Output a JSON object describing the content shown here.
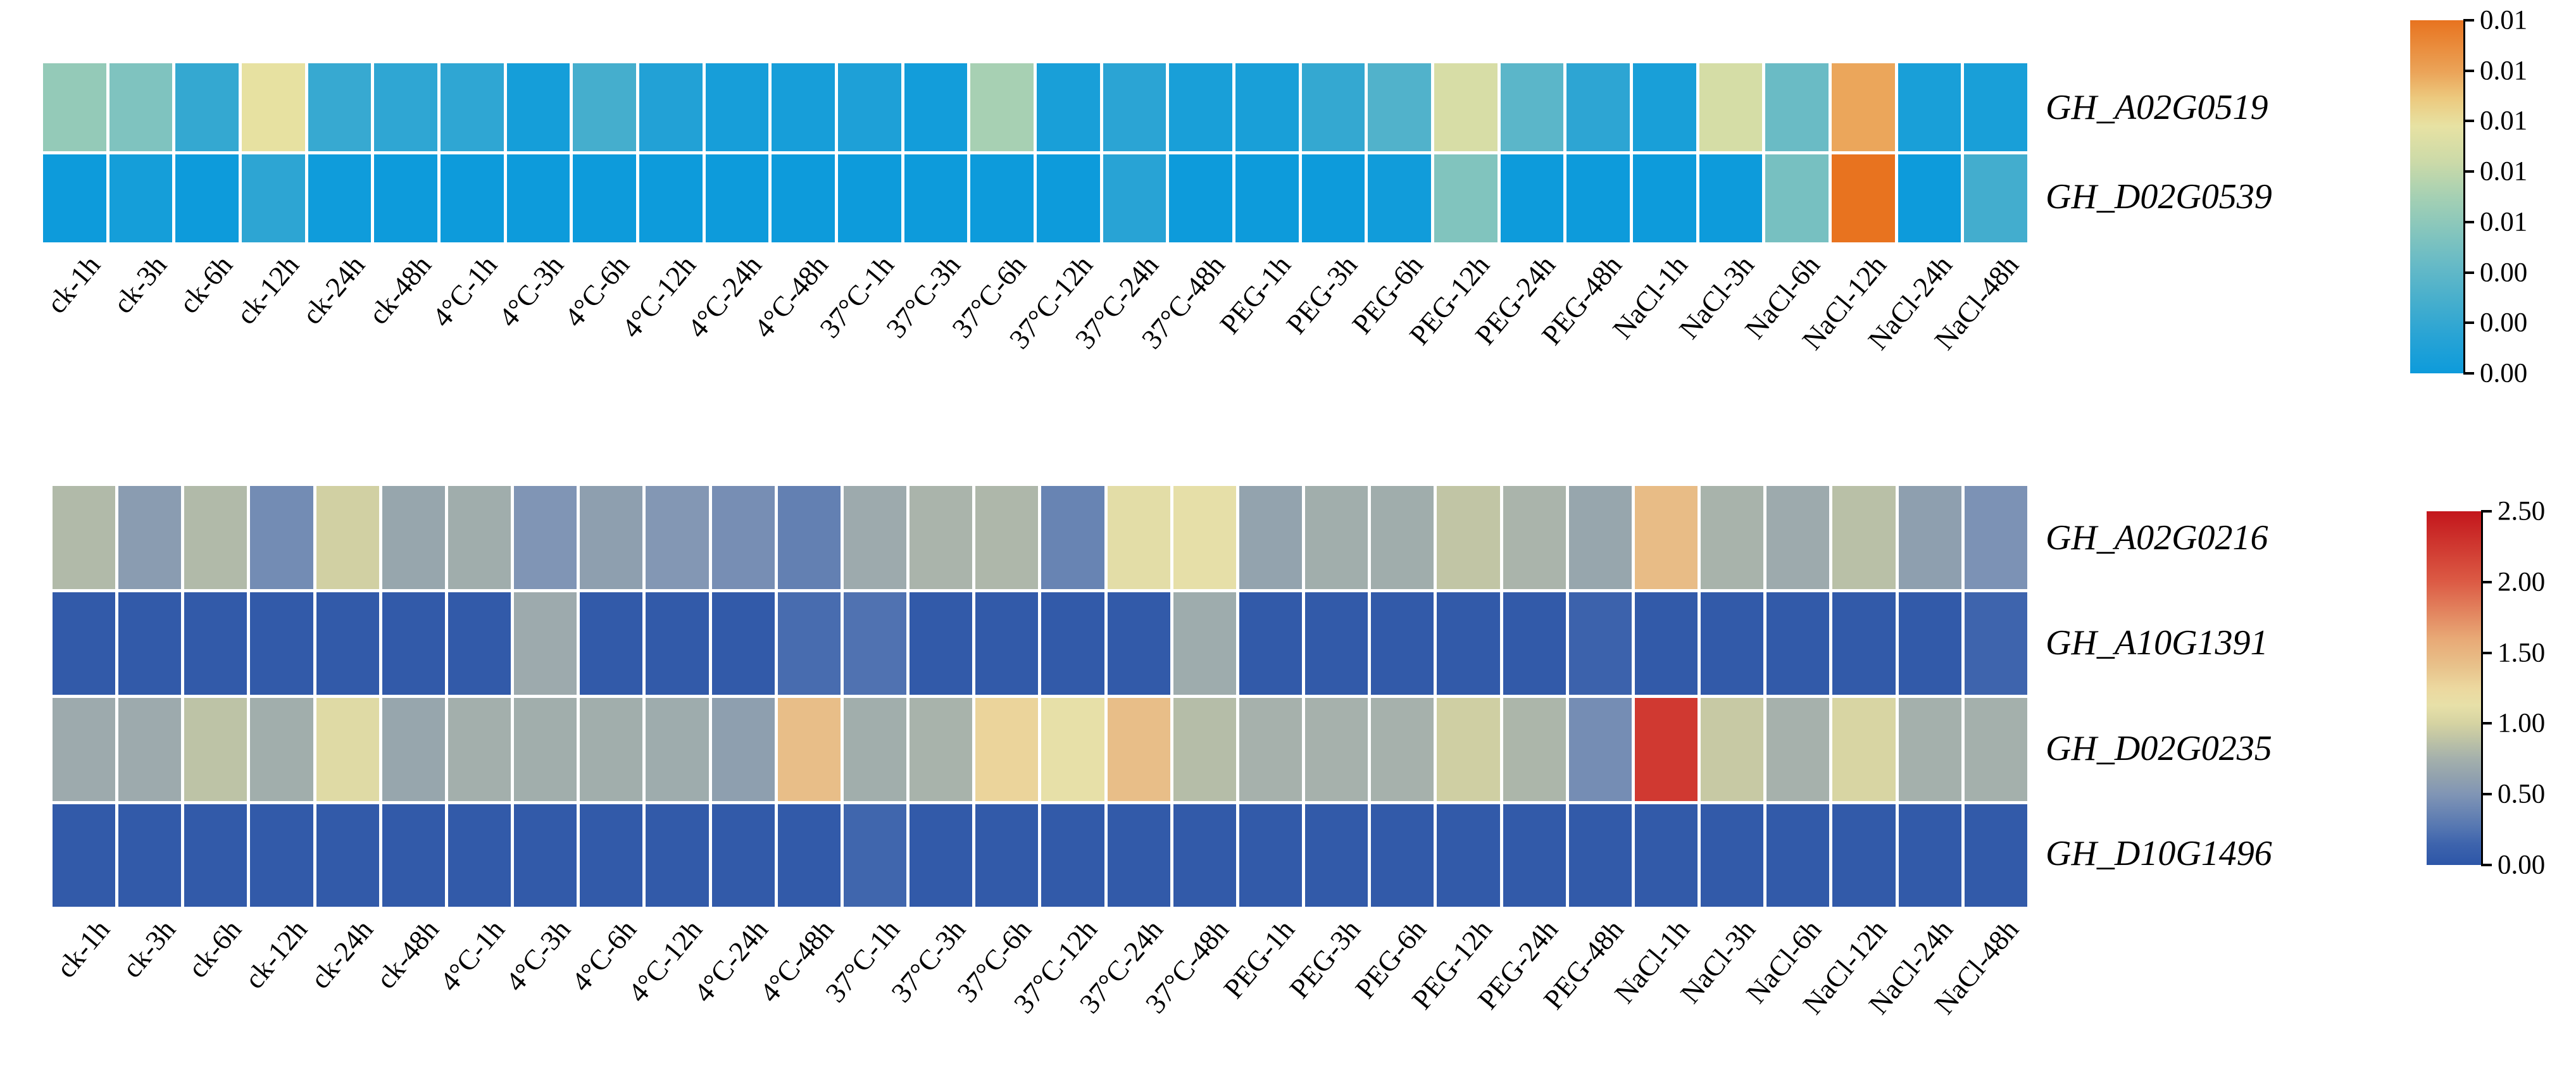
{
  "figure": {
    "background": "#ffffff",
    "text_color": "#000000"
  },
  "chart_data": [
    {
      "type": "heatmap",
      "title": "",
      "xlabel": "",
      "ylabel": "",
      "legend_position": "right",
      "grid": false,
      "rows": [
        "GH_A02G0519",
        "GH_D02G0539"
      ],
      "categories": [
        "ck-1h",
        "ck-3h",
        "ck-6h",
        "ck-12h",
        "ck-24h",
        "ck-48h",
        "4°C-1h",
        "4°C-3h",
        "4°C-6h",
        "4°C-12h",
        "4°C-24h",
        "4°C-48h",
        "37°C-1h",
        "37°C-3h",
        "37°C-6h",
        "37°C-12h",
        "37°C-24h",
        "37°C-48h",
        "PEG-1h",
        "PEG-3h",
        "PEG-6h",
        "PEG-12h",
        "PEG-24h",
        "PEG-48h",
        "NaCl-1h",
        "NaCl-3h",
        "NaCl-6h",
        "NaCl-12h",
        "NaCl-24h",
        "NaCl-48h"
      ],
      "series": [
        {
          "name": "GH_A02G0519",
          "values": [
            0.0056,
            0.0048,
            0.0018,
            0.0088,
            0.0019,
            0.0016,
            0.0016,
            0.0004,
            0.0025,
            0.001,
            0.0005,
            0.0005,
            0.0008,
            0.0003,
            0.0063,
            0.0006,
            0.0014,
            0.0006,
            0.0006,
            0.0018,
            0.003,
            0.008,
            0.0034,
            0.0015,
            0.0006,
            0.0079,
            0.004,
            0.0106,
            0.0006,
            0.0006
          ]
        },
        {
          "name": "GH_D02G0539",
          "values": [
            0.0,
            0.0004,
            0.0,
            0.0015,
            0.0001,
            0.0,
            0.0,
            0.0,
            0.0,
            0.0,
            0.0,
            0.0,
            0.0,
            0.0,
            0.0,
            0.0,
            0.0013,
            0.0,
            0.0,
            0.0,
            0.0002,
            0.0049,
            0.0,
            0.0,
            0.0,
            0.0,
            0.0045,
            0.0125,
            0.0,
            0.0024
          ]
        }
      ],
      "vmin": 0.0,
      "vmax": 0.0125,
      "colorbar": {
        "tick_labels": [
          "0.01",
          "0.01",
          "0.01",
          "0.01",
          "0.01",
          "0.00",
          "0.00",
          "0.00"
        ],
        "colormap": [
          {
            "t": 0.0,
            "c": "#0d9bdb"
          },
          {
            "t": 0.1,
            "c": "#27a3d5"
          },
          {
            "t": 0.2,
            "c": "#45aecd"
          },
          {
            "t": 0.3,
            "c": "#64b9c7"
          },
          {
            "t": 0.4,
            "c": "#84c5bd"
          },
          {
            "t": 0.5,
            "c": "#a5d0b3"
          },
          {
            "t": 0.6,
            "c": "#ccdaa8"
          },
          {
            "t": 0.7,
            "c": "#e7e2a3"
          },
          {
            "t": 0.78,
            "c": "#ecc97e"
          },
          {
            "t": 0.85,
            "c": "#eba55a"
          },
          {
            "t": 1.0,
            "c": "#e8731f"
          }
        ]
      }
    },
    {
      "type": "heatmap",
      "title": "",
      "xlabel": "",
      "ylabel": "",
      "legend_position": "right",
      "grid": false,
      "rows": [
        "GH_A02G0216",
        "GH_A10G1391",
        "GH_D02G0235",
        "GH_D10G1496"
      ],
      "categories": [
        "ck-1h",
        "ck-3h",
        "ck-6h",
        "ck-12h",
        "ck-24h",
        "ck-48h",
        "4°C-1h",
        "4°C-3h",
        "4°C-6h",
        "4°C-12h",
        "4°C-24h",
        "4°C-48h",
        "37°C-1h",
        "37°C-3h",
        "37°C-6h",
        "37°C-12h",
        "37°C-24h",
        "37°C-48h",
        "PEG-1h",
        "PEG-3h",
        "PEG-6h",
        "PEG-12h",
        "PEG-24h",
        "PEG-48h",
        "NaCl-1h",
        "NaCl-3h",
        "NaCl-6h",
        "NaCl-12h",
        "NaCl-24h",
        "NaCl-48h"
      ],
      "series": [
        {
          "name": "GH_A02G0216",
          "values": [
            0.82,
            0.57,
            0.82,
            0.43,
            0.98,
            0.66,
            0.72,
            0.5,
            0.6,
            0.52,
            0.45,
            0.34,
            0.7,
            0.78,
            0.8,
            0.37,
            1.1,
            1.12,
            0.63,
            0.73,
            0.72,
            0.9,
            0.78,
            0.66,
            1.45,
            0.77,
            0.7,
            0.86,
            0.6,
            0.48
          ]
        },
        {
          "name": "GH_A10G1391",
          "values": [
            0.04,
            0.04,
            0.04,
            0.04,
            0.04,
            0.04,
            0.04,
            0.7,
            0.04,
            0.04,
            0.04,
            0.2,
            0.24,
            0.04,
            0.04,
            0.04,
            0.04,
            0.71,
            0.04,
            0.04,
            0.04,
            0.04,
            0.04,
            0.13,
            0.04,
            0.04,
            0.04,
            0.04,
            0.04,
            0.15
          ]
        },
        {
          "name": "GH_D02G0235",
          "values": [
            0.7,
            0.7,
            0.88,
            0.73,
            1.07,
            0.66,
            0.74,
            0.73,
            0.73,
            0.71,
            0.6,
            1.43,
            0.73,
            0.77,
            1.28,
            1.13,
            1.43,
            0.84,
            0.76,
            0.76,
            0.76,
            0.97,
            0.79,
            0.44,
            2.25,
            0.93,
            0.76,
            1.02,
            0.75,
            0.75
          ]
        },
        {
          "name": "GH_D10G1496",
          "values": [
            0.04,
            0.04,
            0.04,
            0.04,
            0.04,
            0.04,
            0.04,
            0.04,
            0.04,
            0.04,
            0.04,
            0.04,
            0.16,
            0.04,
            0.04,
            0.04,
            0.04,
            0.04,
            0.04,
            0.04,
            0.04,
            0.04,
            0.04,
            0.04,
            0.04,
            0.04,
            0.04,
            0.04,
            0.04,
            0.04
          ]
        }
      ],
      "vmin": 0.0,
      "vmax": 2.5,
      "colorbar": {
        "tick_labels": [
          "2.50",
          "2.00",
          "1.50",
          "1.00",
          "0.50",
          "0.00"
        ],
        "colormap": [
          {
            "t": 0.0,
            "c": "#2d56a8"
          },
          {
            "t": 0.06,
            "c": "#3e64ad"
          },
          {
            "t": 0.1,
            "c": "#5274b1"
          },
          {
            "t": 0.2,
            "c": "#8095b5"
          },
          {
            "t": 0.25,
            "c": "#92a2ae"
          },
          {
            "t": 0.3,
            "c": "#a4b0ac"
          },
          {
            "t": 0.35,
            "c": "#bcc2a6"
          },
          {
            "t": 0.4,
            "c": "#d5d3a2"
          },
          {
            "t": 0.45,
            "c": "#e7e0a8"
          },
          {
            "t": 0.5,
            "c": "#ecd89f"
          },
          {
            "t": 0.56,
            "c": "#e8c28b"
          },
          {
            "t": 0.64,
            "c": "#e8a976"
          },
          {
            "t": 0.8,
            "c": "#dc5b45"
          },
          {
            "t": 1.0,
            "c": "#c3161c"
          }
        ]
      }
    }
  ]
}
